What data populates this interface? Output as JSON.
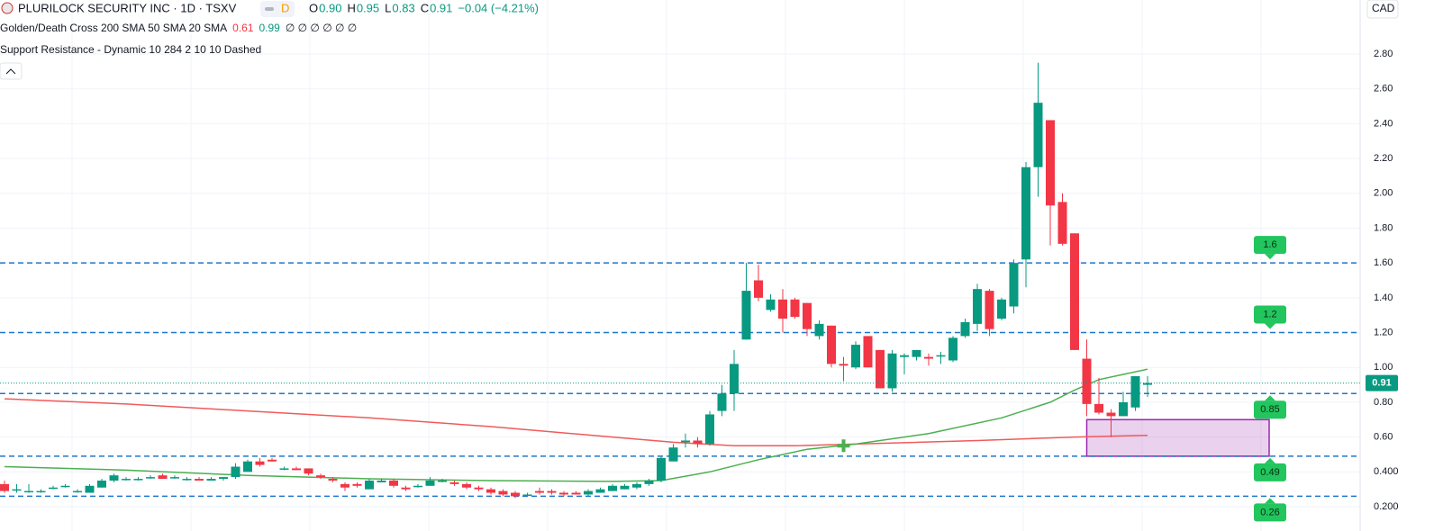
{
  "header": {
    "title": "PLURILOCK SECURITY INC · 1D · TSXV",
    "badge": "D",
    "ohlc": [
      {
        "label": "O",
        "value": "0.90"
      },
      {
        "label": "H",
        "value": "0.95"
      },
      {
        "label": "L",
        "value": "0.83"
      },
      {
        "label": "C",
        "value": "0.91"
      }
    ],
    "change": "−0.04 (−4.21%)",
    "currency": "CAD",
    "indicator1": {
      "name": "Golden/Death Cross 200 SMA 50 SMA 20 SMA",
      "v1": "0.61",
      "v2": "0.99",
      "rest": "∅ ∅ ∅ ∅ ∅ ∅"
    },
    "indicator2": {
      "name": "Support Resistance - Dynamic 10 284 2 10 10 Dashed"
    }
  },
  "chart_data": {
    "type": "candlestick",
    "open": [
      0.33,
      0.3,
      0.29,
      0.29,
      0.31,
      0.32,
      0.29,
      0.28,
      0.31,
      0.35,
      0.36,
      0.36,
      0.37,
      0.38,
      0.37,
      0.36,
      0.36,
      0.35,
      0.36,
      0.37,
      0.4,
      0.46,
      0.47,
      0.42,
      0.42,
      0.42,
      0.38,
      0.36,
      0.33,
      0.33,
      0.3,
      0.34,
      0.35,
      0.31,
      0.32,
      0.32,
      0.35,
      0.34,
      0.33,
      0.31,
      0.3,
      0.29,
      0.28,
      0.27,
      0.29,
      0.29,
      0.28,
      0.28,
      0.27,
      0.28,
      0.29,
      0.3,
      0.31,
      0.33,
      0.35,
      0.46,
      0.57,
      0.58,
      0.56,
      0.75,
      0.85,
      1.16,
      1.5,
      1.33,
      1.39,
      1.39,
      1.37,
      1.18,
      1.24,
      1.02,
      1.0,
      1.18,
      1.1,
      0.88,
      1.06,
      1.06,
      1.06,
      1.07,
      1.04,
      1.18,
      1.25,
      1.44,
      1.28,
      1.35,
      1.62,
      2.15,
      2.42,
      1.95,
      1.77,
      1.05,
      0.79,
      0.74,
      0.72,
      0.77,
      0.9
    ],
    "high": [
      0.35,
      0.33,
      0.33,
      0.3,
      0.32,
      0.33,
      0.3,
      0.33,
      0.36,
      0.39,
      0.37,
      0.37,
      0.38,
      0.39,
      0.38,
      0.37,
      0.37,
      0.37,
      0.37,
      0.45,
      0.47,
      0.48,
      0.48,
      0.43,
      0.43,
      0.42,
      0.39,
      0.37,
      0.34,
      0.34,
      0.36,
      0.36,
      0.36,
      0.32,
      0.33,
      0.37,
      0.36,
      0.35,
      0.34,
      0.32,
      0.31,
      0.3,
      0.29,
      0.28,
      0.31,
      0.3,
      0.29,
      0.29,
      0.3,
      0.31,
      0.33,
      0.33,
      0.34,
      0.36,
      0.49,
      0.56,
      0.62,
      0.6,
      0.75,
      0.9,
      1.1,
      1.6,
      1.59,
      1.42,
      1.45,
      1.4,
      1.37,
      1.27,
      1.24,
      1.06,
      1.15,
      1.18,
      1.1,
      1.1,
      1.08,
      1.1,
      1.08,
      1.09,
      1.18,
      1.28,
      1.48,
      1.45,
      1.4,
      1.62,
      2.18,
      2.75,
      2.42,
      2.0,
      1.77,
      1.16,
      0.94,
      0.76,
      0.86,
      0.95,
      0.95
    ],
    "low": [
      0.28,
      0.28,
      0.28,
      0.28,
      0.3,
      0.31,
      0.28,
      0.28,
      0.31,
      0.34,
      0.35,
      0.35,
      0.36,
      0.36,
      0.36,
      0.35,
      0.35,
      0.35,
      0.35,
      0.36,
      0.4,
      0.43,
      0.46,
      0.41,
      0.41,
      0.38,
      0.36,
      0.34,
      0.29,
      0.31,
      0.3,
      0.34,
      0.31,
      0.29,
      0.31,
      0.32,
      0.34,
      0.32,
      0.3,
      0.29,
      0.27,
      0.26,
      0.25,
      0.26,
      0.27,
      0.27,
      0.26,
      0.27,
      0.26,
      0.28,
      0.29,
      0.3,
      0.3,
      0.32,
      0.34,
      0.46,
      0.54,
      0.54,
      0.55,
      0.72,
      0.75,
      1.16,
      1.38,
      1.32,
      1.2,
      1.28,
      1.18,
      1.16,
      1.0,
      0.92,
      0.99,
      1.0,
      0.88,
      0.86,
      0.96,
      1.04,
      1.01,
      1.02,
      1.03,
      1.17,
      1.21,
      1.18,
      1.27,
      1.31,
      1.46,
      1.98,
      1.7,
      1.7,
      1.1,
      0.72,
      0.73,
      0.6,
      0.72,
      0.75,
      0.83
    ],
    "close": [
      0.29,
      0.3,
      0.29,
      0.29,
      0.31,
      0.32,
      0.29,
      0.32,
      0.35,
      0.38,
      0.36,
      0.36,
      0.37,
      0.36,
      0.37,
      0.36,
      0.35,
      0.36,
      0.37,
      0.43,
      0.46,
      0.44,
      0.46,
      0.42,
      0.41,
      0.39,
      0.37,
      0.35,
      0.31,
      0.32,
      0.35,
      0.35,
      0.32,
      0.3,
      0.32,
      0.35,
      0.35,
      0.33,
      0.31,
      0.3,
      0.28,
      0.27,
      0.26,
      0.27,
      0.28,
      0.28,
      0.27,
      0.27,
      0.29,
      0.3,
      0.32,
      0.32,
      0.33,
      0.35,
      0.48,
      0.54,
      0.58,
      0.56,
      0.73,
      0.85,
      1.02,
      1.44,
      1.4,
      1.39,
      1.28,
      1.29,
      1.22,
      1.25,
      1.02,
      1.01,
      1.13,
      1.0,
      0.88,
      1.08,
      1.07,
      1.1,
      1.05,
      1.07,
      1.17,
      1.26,
      1.45,
      1.22,
      1.39,
      1.6,
      2.15,
      2.52,
      1.93,
      1.71,
      1.1,
      0.79,
      0.74,
      0.72,
      0.8,
      0.95,
      0.91
    ],
    "sma": [
      {
        "name": "200 SMA",
        "color": "#f05a5a",
        "x": [
          0,
          10,
          20,
          30,
          40,
          50,
          55,
          60,
          65,
          70,
          80,
          88,
          94
        ],
        "values": [
          0.82,
          0.79,
          0.75,
          0.71,
          0.66,
          0.6,
          0.57,
          0.55,
          0.55,
          0.56,
          0.58,
          0.6,
          0.61
        ]
      },
      {
        "name": "50 SMA",
        "color": "#4caf50",
        "x": [
          0,
          10,
          20,
          30,
          40,
          50,
          54,
          58,
          62,
          66,
          70,
          76,
          82,
          86,
          88,
          90,
          92,
          94
        ],
        "values": [
          0.43,
          0.41,
          0.38,
          0.36,
          0.35,
          0.345,
          0.35,
          0.4,
          0.47,
          0.53,
          0.56,
          0.62,
          0.71,
          0.8,
          0.87,
          0.93,
          0.96,
          0.99
        ]
      }
    ],
    "levels": [
      1.6,
      1.2,
      0.85,
      0.49,
      0.26
    ],
    "zone": {
      "start": 89,
      "end": 104,
      "top": 0.7,
      "bottom": 0.49
    },
    "cross": {
      "x": 69,
      "value": 0.55
    },
    "ylim": [
      0.2,
      2.8
    ],
    "yticks": [
      {
        "value": 2.8,
        "label": "2.80"
      },
      {
        "value": 2.6,
        "label": "2.60"
      },
      {
        "value": 2.4,
        "label": "2.40"
      },
      {
        "value": 2.2,
        "label": "2.20"
      },
      {
        "value": 2.0,
        "label": "2.00"
      },
      {
        "value": 1.8,
        "label": "1.80"
      },
      {
        "value": 1.6,
        "label": "1.60"
      },
      {
        "value": 1.4,
        "label": "1.40"
      },
      {
        "value": 1.2,
        "label": "1.20"
      },
      {
        "value": 1.0,
        "label": "1.00"
      },
      {
        "value": 0.8,
        "label": "0.80"
      },
      {
        "value": 0.6,
        "label": "0.60"
      },
      {
        "value": 0.4,
        "label": "0.400"
      },
      {
        "value": 0.2,
        "label": "0.200"
      }
    ],
    "up_color": "#089981",
    "down_color": "#f23645",
    "level_color": "#1f77c9",
    "tag_color": "#22c55e",
    "grid": true
  }
}
